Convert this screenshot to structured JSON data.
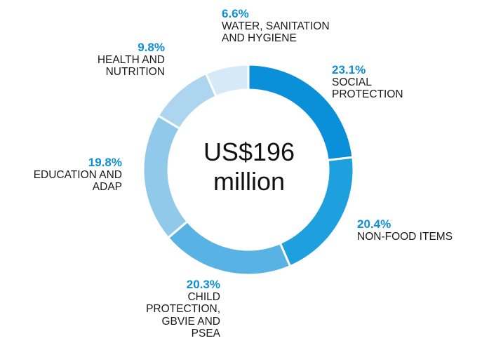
{
  "chart_data": {
    "type": "pie",
    "donut": true,
    "center_label": "US$196\nmillion",
    "slices": [
      {
        "label": "SOCIAL\nPROTECTION",
        "value": 23.1,
        "percent_label": "23.1%",
        "color": "#0a8fd9"
      },
      {
        "label": "NON-FOOD ITEMS",
        "value": 20.4,
        "percent_label": "20.4%",
        "color": "#1ea0de"
      },
      {
        "label": "CHILD\nPROTECTION,\nGBVIE AND\nPSEA",
        "value": 20.3,
        "percent_label": "20.3%",
        "color": "#58b3e4"
      },
      {
        "label": "EDUCATION AND\nADAP",
        "value": 19.8,
        "percent_label": "19.8%",
        "color": "#91c9ea"
      },
      {
        "label": "HEALTH AND\nNUTRITION",
        "value": 9.8,
        "percent_label": "9.8%",
        "color": "#aed5ef"
      },
      {
        "label": "WATER, SANITATION\nAND HYGIENE",
        "value": 6.6,
        "percent_label": "6.6%",
        "color": "#d6e9f6"
      }
    ]
  }
}
